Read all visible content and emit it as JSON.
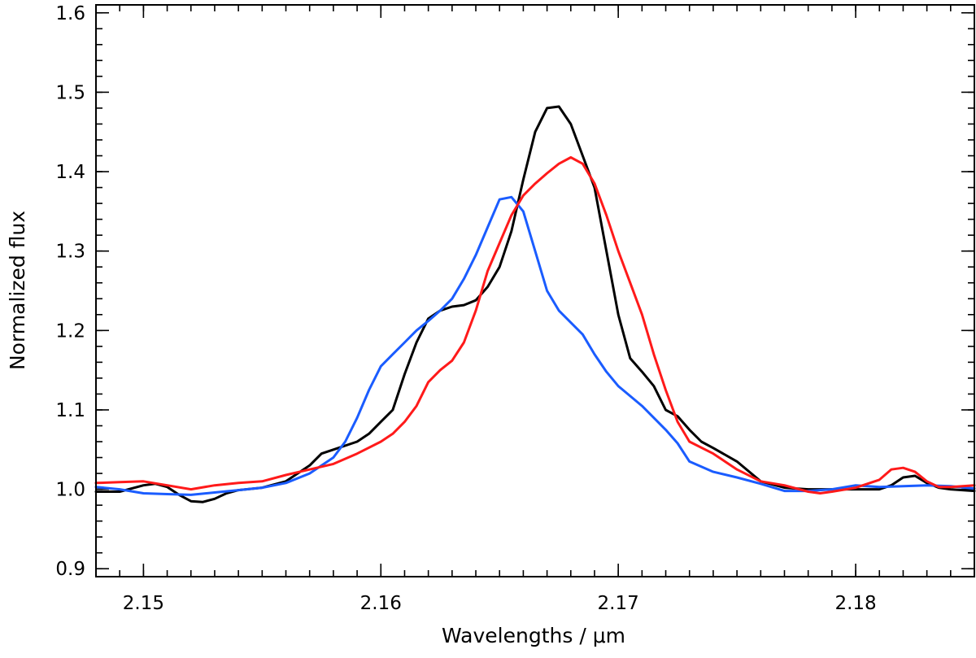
{
  "chart_data": {
    "type": "line",
    "title": "",
    "xlabel": "Wavelengths / μm",
    "ylabel": "Normalized flux",
    "xlim": [
      2.148,
      2.185
    ],
    "ylim": [
      0.89,
      1.61
    ],
    "xticks": [
      2.15,
      2.16,
      2.17,
      2.18
    ],
    "xtick_labels": [
      "2.15",
      "2.16",
      "2.17",
      "2.18"
    ],
    "yticks": [
      0.9,
      1.0,
      1.1,
      1.2,
      1.3,
      1.4,
      1.5,
      1.6
    ],
    "ytick_labels": [
      "0.9",
      "1.0",
      "1.1",
      "1.2",
      "1.3",
      "1.4",
      "1.5",
      "1.6"
    ],
    "x_minor_step": 0.001,
    "y_minor_step": 0.02,
    "grid": false,
    "series": [
      {
        "name": "black",
        "color": "#000000",
        "points": [
          [
            2.148,
            0.997
          ],
          [
            2.149,
            0.997
          ],
          [
            2.15,
            1.005
          ],
          [
            2.1505,
            1.007
          ],
          [
            2.151,
            1.003
          ],
          [
            2.1515,
            0.993
          ],
          [
            2.152,
            0.985
          ],
          [
            2.1525,
            0.984
          ],
          [
            2.153,
            0.988
          ],
          [
            2.1535,
            0.995
          ],
          [
            2.154,
            0.999
          ],
          [
            2.155,
            1.002
          ],
          [
            2.156,
            1.01
          ],
          [
            2.157,
            1.03
          ],
          [
            2.1575,
            1.045
          ],
          [
            2.158,
            1.05
          ],
          [
            2.159,
            1.06
          ],
          [
            2.1595,
            1.07
          ],
          [
            2.16,
            1.085
          ],
          [
            2.1605,
            1.1
          ],
          [
            2.161,
            1.145
          ],
          [
            2.1615,
            1.185
          ],
          [
            2.162,
            1.215
          ],
          [
            2.1625,
            1.225
          ],
          [
            2.163,
            1.23
          ],
          [
            2.1635,
            1.232
          ],
          [
            2.164,
            1.238
          ],
          [
            2.1645,
            1.255
          ],
          [
            2.165,
            1.28
          ],
          [
            2.1655,
            1.325
          ],
          [
            2.166,
            1.39
          ],
          [
            2.1665,
            1.45
          ],
          [
            2.167,
            1.48
          ],
          [
            2.1675,
            1.482
          ],
          [
            2.168,
            1.46
          ],
          [
            2.1685,
            1.42
          ],
          [
            2.169,
            1.38
          ],
          [
            2.1695,
            1.3
          ],
          [
            2.17,
            1.22
          ],
          [
            2.1705,
            1.165
          ],
          [
            2.171,
            1.148
          ],
          [
            2.1715,
            1.13
          ],
          [
            2.172,
            1.1
          ],
          [
            2.1725,
            1.092
          ],
          [
            2.173,
            1.075
          ],
          [
            2.1735,
            1.06
          ],
          [
            2.174,
            1.052
          ],
          [
            2.175,
            1.035
          ],
          [
            2.176,
            1.01
          ],
          [
            2.177,
            1.002
          ],
          [
            2.178,
            1.0
          ],
          [
            2.179,
            1.0
          ],
          [
            2.18,
            1.0
          ],
          [
            2.181,
            1.0
          ],
          [
            2.1815,
            1.005
          ],
          [
            2.182,
            1.015
          ],
          [
            2.1825,
            1.017
          ],
          [
            2.183,
            1.008
          ],
          [
            2.1835,
            1.002
          ],
          [
            2.184,
            1.0
          ],
          [
            2.185,
            0.998
          ]
        ]
      },
      {
        "name": "blue",
        "color": "#1a5cff",
        "points": [
          [
            2.148,
            1.003
          ],
          [
            2.149,
            1.0
          ],
          [
            2.15,
            0.995
          ],
          [
            2.151,
            0.994
          ],
          [
            2.152,
            0.993
          ],
          [
            2.153,
            0.996
          ],
          [
            2.154,
            0.999
          ],
          [
            2.155,
            1.002
          ],
          [
            2.156,
            1.008
          ],
          [
            2.157,
            1.02
          ],
          [
            2.158,
            1.04
          ],
          [
            2.1585,
            1.06
          ],
          [
            2.159,
            1.09
          ],
          [
            2.1595,
            1.125
          ],
          [
            2.16,
            1.155
          ],
          [
            2.1605,
            1.17
          ],
          [
            2.161,
            1.185
          ],
          [
            2.1615,
            1.2
          ],
          [
            2.162,
            1.212
          ],
          [
            2.1625,
            1.225
          ],
          [
            2.163,
            1.24
          ],
          [
            2.1635,
            1.265
          ],
          [
            2.164,
            1.295
          ],
          [
            2.1645,
            1.33
          ],
          [
            2.165,
            1.365
          ],
          [
            2.1655,
            1.368
          ],
          [
            2.166,
            1.35
          ],
          [
            2.1665,
            1.3
          ],
          [
            2.167,
            1.25
          ],
          [
            2.1675,
            1.225
          ],
          [
            2.168,
            1.21
          ],
          [
            2.1685,
            1.195
          ],
          [
            2.169,
            1.17
          ],
          [
            2.1695,
            1.148
          ],
          [
            2.17,
            1.13
          ],
          [
            2.171,
            1.105
          ],
          [
            2.172,
            1.075
          ],
          [
            2.1725,
            1.058
          ],
          [
            2.173,
            1.035
          ],
          [
            2.174,
            1.022
          ],
          [
            2.175,
            1.015
          ],
          [
            2.176,
            1.007
          ],
          [
            2.177,
            0.998
          ],
          [
            2.178,
            0.998
          ],
          [
            2.179,
            1.0
          ],
          [
            2.18,
            1.005
          ],
          [
            2.181,
            1.003
          ],
          [
            2.182,
            1.004
          ],
          [
            2.183,
            1.005
          ],
          [
            2.184,
            1.004
          ],
          [
            2.185,
            1.001
          ]
        ]
      },
      {
        "name": "red",
        "color": "#ff1a1a",
        "points": [
          [
            2.148,
            1.008
          ],
          [
            2.149,
            1.009
          ],
          [
            2.15,
            1.01
          ],
          [
            2.151,
            1.005
          ],
          [
            2.152,
            1.0
          ],
          [
            2.153,
            1.005
          ],
          [
            2.154,
            1.008
          ],
          [
            2.155,
            1.01
          ],
          [
            2.156,
            1.018
          ],
          [
            2.157,
            1.025
          ],
          [
            2.158,
            1.032
          ],
          [
            2.159,
            1.045
          ],
          [
            2.16,
            1.06
          ],
          [
            2.1605,
            1.07
          ],
          [
            2.161,
            1.085
          ],
          [
            2.1615,
            1.105
          ],
          [
            2.162,
            1.135
          ],
          [
            2.1625,
            1.15
          ],
          [
            2.163,
            1.162
          ],
          [
            2.1635,
            1.185
          ],
          [
            2.164,
            1.225
          ],
          [
            2.1645,
            1.275
          ],
          [
            2.165,
            1.31
          ],
          [
            2.1655,
            1.345
          ],
          [
            2.166,
            1.37
          ],
          [
            2.1665,
            1.385
          ],
          [
            2.167,
            1.398
          ],
          [
            2.1675,
            1.41
          ],
          [
            2.168,
            1.418
          ],
          [
            2.1685,
            1.41
          ],
          [
            2.169,
            1.385
          ],
          [
            2.1695,
            1.345
          ],
          [
            2.17,
            1.3
          ],
          [
            2.1705,
            1.26
          ],
          [
            2.171,
            1.22
          ],
          [
            2.1715,
            1.17
          ],
          [
            2.172,
            1.125
          ],
          [
            2.1725,
            1.085
          ],
          [
            2.173,
            1.06
          ],
          [
            2.174,
            1.045
          ],
          [
            2.175,
            1.025
          ],
          [
            2.176,
            1.01
          ],
          [
            2.177,
            1.005
          ],
          [
            2.178,
            0.997
          ],
          [
            2.1785,
            0.995
          ],
          [
            2.179,
            0.997
          ],
          [
            2.18,
            1.002
          ],
          [
            2.181,
            1.012
          ],
          [
            2.1815,
            1.025
          ],
          [
            2.182,
            1.027
          ],
          [
            2.1825,
            1.022
          ],
          [
            2.183,
            1.01
          ],
          [
            2.1835,
            1.003
          ],
          [
            2.184,
            1.003
          ],
          [
            2.185,
            1.005
          ]
        ]
      }
    ]
  }
}
